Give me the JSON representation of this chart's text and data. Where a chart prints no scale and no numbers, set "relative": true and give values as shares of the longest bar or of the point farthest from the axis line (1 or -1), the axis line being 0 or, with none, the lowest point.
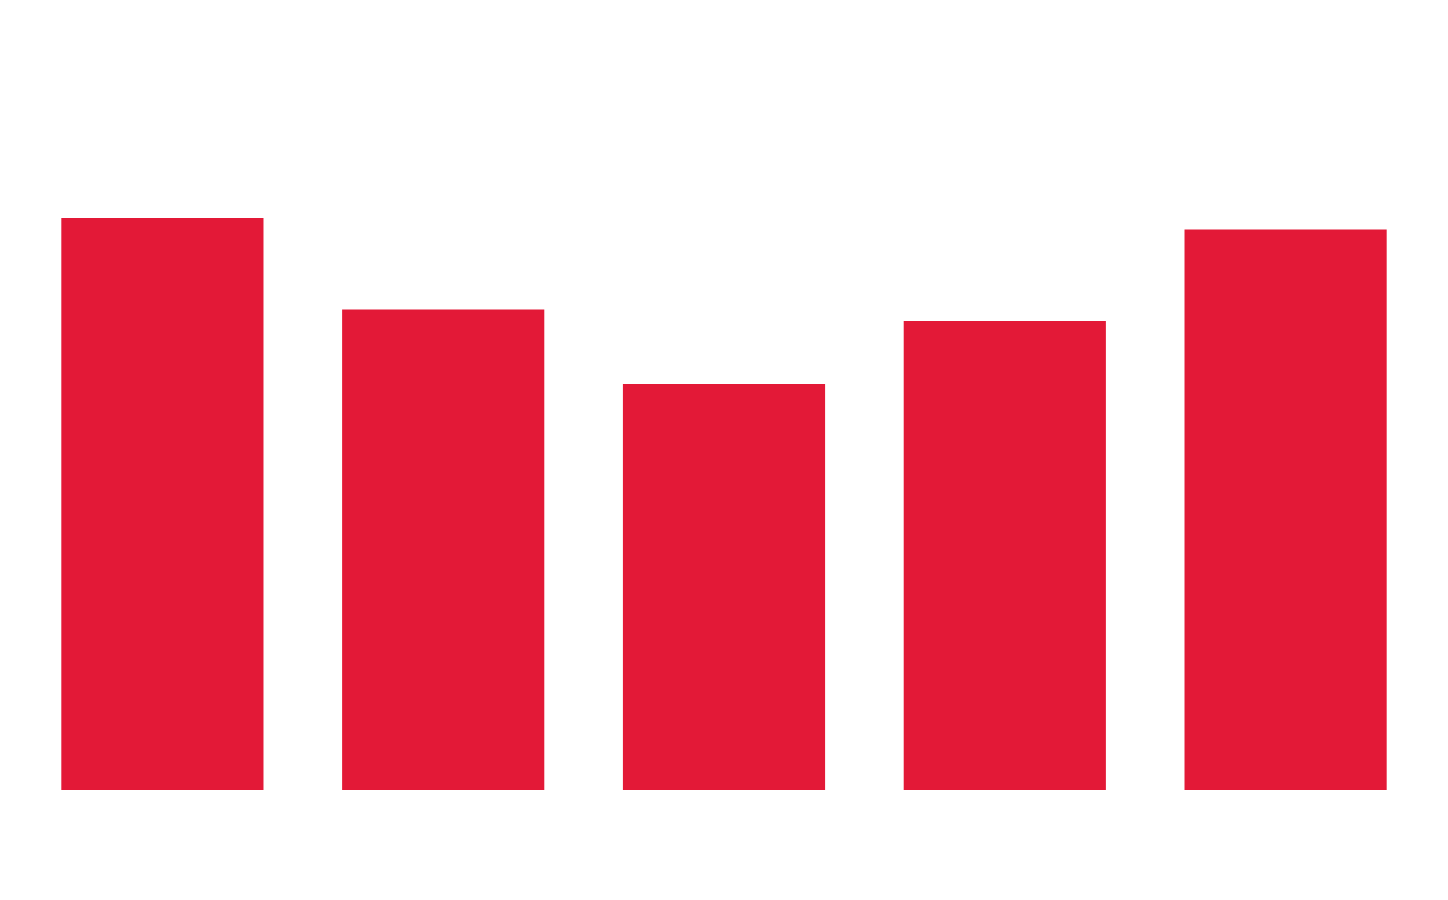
{
  "chart_data": {
    "type": "bar",
    "relative": true,
    "categories": [
      null,
      null,
      null,
      null,
      null
    ],
    "values": [
      1,
      0.84,
      0.71,
      0.82,
      0.98
    ],
    "color": "#e31937"
  }
}
